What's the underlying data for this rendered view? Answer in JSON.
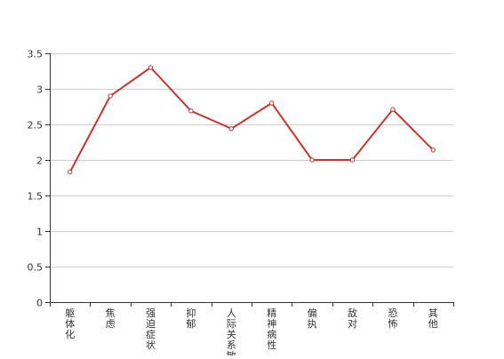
{
  "chart_data": {
    "type": "line",
    "categories": [
      "躯体化",
      "焦虑",
      "强迫症状",
      "抑郁",
      "人际关系敏感",
      "精神病性",
      "偏执",
      "敌对",
      "恐怖",
      "其他"
    ],
    "series": [
      {
        "values": [
          1.83,
          2.9,
          3.3,
          2.69,
          2.44,
          2.8,
          2.0,
          2.0,
          2.71,
          2.14
        ]
      }
    ],
    "ylim": [
      0,
      3.5
    ],
    "yticks": [
      "0",
      "0.5",
      "1",
      "1.5",
      "2",
      "2.5",
      "3",
      "3.5"
    ],
    "grid": true,
    "legend": "none"
  },
  "colors": {
    "series": "#c23531",
    "grid": "#cccccc",
    "axis": "#333333",
    "marker_fill": "#ffffff"
  }
}
